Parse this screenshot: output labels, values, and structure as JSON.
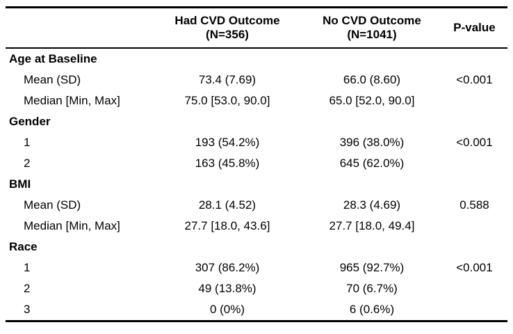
{
  "header": {
    "col1": "",
    "col2_line1": "Had CVD Outcome",
    "col2_line2": "(N=356)",
    "col3_line1": "No CVD Outcome",
    "col3_line2": "(N=1041)",
    "col4": "P-value"
  },
  "sections": [
    {
      "title": "Age at Baseline",
      "rows": [
        {
          "label": "Mean (SD)",
          "had": "73.4 (7.69)",
          "no": "66.0 (8.60)",
          "p": "<0.001"
        },
        {
          "label": "Median [Min, Max]",
          "had": "75.0 [53.0, 90.0]",
          "no": "65.0 [52.0, 90.0]",
          "p": ""
        }
      ]
    },
    {
      "title": "Gender",
      "rows": [
        {
          "label": "1",
          "had": "193 (54.2%)",
          "no": "396 (38.0%)",
          "p": "<0.001"
        },
        {
          "label": "2",
          "had": "163 (45.8%)",
          "no": "645 (62.0%)",
          "p": ""
        }
      ]
    },
    {
      "title": "BMI",
      "rows": [
        {
          "label": "Mean (SD)",
          "had": "28.1 (4.52)",
          "no": "28.3 (4.69)",
          "p": "0.588"
        },
        {
          "label": "Median [Min, Max]",
          "had": "27.7 [18.0, 43.6]",
          "no": "27.7 [18.0, 49.4]",
          "p": ""
        }
      ]
    },
    {
      "title": "Race",
      "rows": [
        {
          "label": "1",
          "had": "307 (86.2%)",
          "no": "965 (92.7%)",
          "p": "<0.001"
        },
        {
          "label": "2",
          "had": "49 (13.8%)",
          "no": "70 (6.7%)",
          "p": ""
        },
        {
          "label": "3",
          "had": "0 (0%)",
          "no": "6 (0.6%)",
          "p": ""
        }
      ]
    }
  ]
}
